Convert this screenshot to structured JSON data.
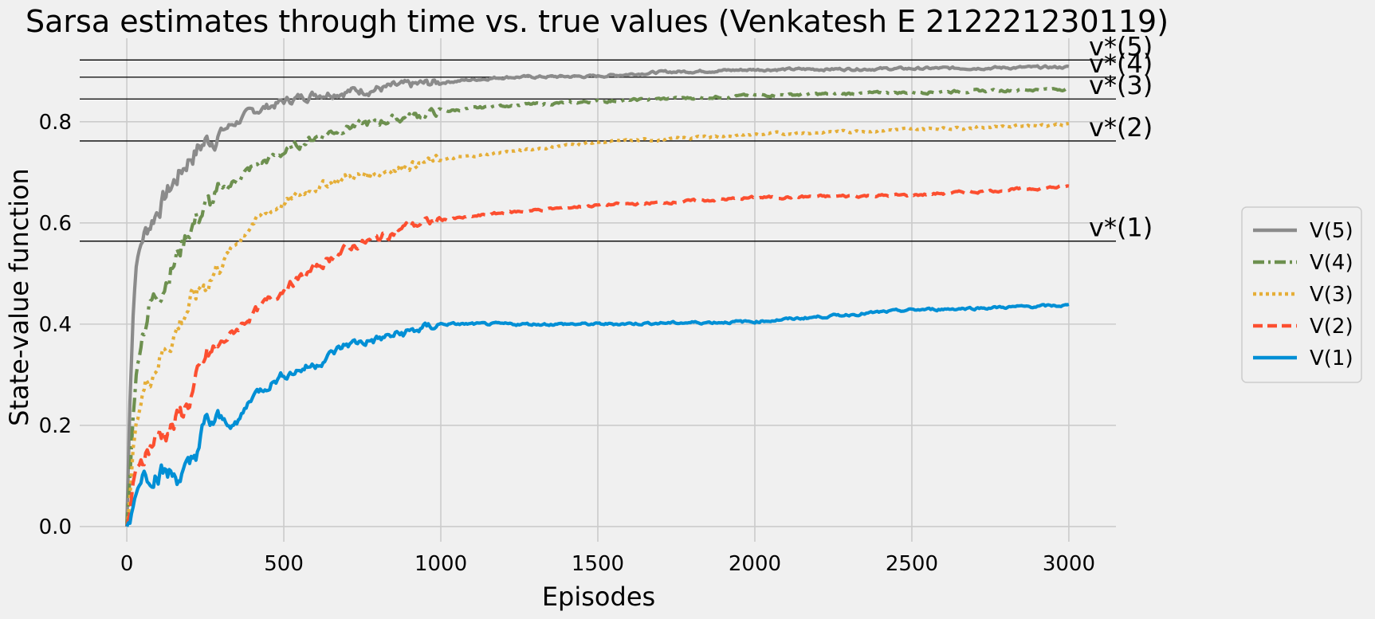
{
  "chart_data": {
    "type": "line",
    "title": "Sarsa estimates through time vs. true values (Venkatesh E 212221230119)",
    "xlabel": "Episodes",
    "ylabel": "State-value function",
    "xlim": [
      -150,
      3150
    ],
    "ylim": [
      -0.03,
      0.965
    ],
    "xticks": [
      0,
      500,
      1000,
      1500,
      2000,
      2500,
      3000
    ],
    "yticks": [
      0.0,
      0.2,
      0.4,
      0.6,
      0.8
    ],
    "xtick_labels": [
      "0",
      "500",
      "1000",
      "1500",
      "2000",
      "2500",
      "3000"
    ],
    "ytick_labels": [
      "0.0",
      "0.2",
      "0.4",
      "0.6",
      "0.8"
    ],
    "grid": true,
    "legend_position": "right",
    "true_values": [
      {
        "label": "v*(5)",
        "value": 0.922
      },
      {
        "label": "v*(4)",
        "value": 0.888
      },
      {
        "label": "v*(3)",
        "value": 0.845
      },
      {
        "label": "v*(2)",
        "value": 0.762
      },
      {
        "label": "v*(1)",
        "value": 0.564
      }
    ],
    "series": [
      {
        "name": "V(5)",
        "color": "#8b8b8b",
        "dash": "solid",
        "x": [
          0,
          10,
          20,
          30,
          50,
          75,
          100,
          150,
          200,
          250,
          300,
          400,
          500,
          600,
          700,
          800,
          900,
          1000,
          1200,
          1500,
          1700,
          2000,
          2500,
          3000
        ],
        "y": [
          0.0,
          0.25,
          0.42,
          0.52,
          0.57,
          0.6,
          0.63,
          0.68,
          0.73,
          0.76,
          0.78,
          0.82,
          0.84,
          0.855,
          0.86,
          0.865,
          0.872,
          0.878,
          0.888,
          0.89,
          0.898,
          0.903,
          0.905,
          0.908
        ]
      },
      {
        "name": "V(4)",
        "color": "#6d904f",
        "dash": "dashdot",
        "x": [
          0,
          10,
          20,
          30,
          50,
          75,
          100,
          150,
          200,
          250,
          300,
          400,
          500,
          600,
          700,
          800,
          900,
          1000,
          1200,
          1500,
          1700,
          2000,
          2500,
          3000
        ],
        "y": [
          0.0,
          0.1,
          0.22,
          0.3,
          0.38,
          0.44,
          0.46,
          0.52,
          0.59,
          0.63,
          0.66,
          0.71,
          0.74,
          0.77,
          0.79,
          0.8,
          0.81,
          0.82,
          0.832,
          0.84,
          0.845,
          0.852,
          0.858,
          0.865
        ]
      },
      {
        "name": "V(3)",
        "color": "#e5ae38",
        "dash": "dotted",
        "x": [
          0,
          10,
          20,
          30,
          50,
          75,
          100,
          150,
          200,
          250,
          300,
          400,
          500,
          600,
          700,
          800,
          900,
          1000,
          1200,
          1500,
          1700,
          2000,
          2500,
          3000
        ],
        "y": [
          0.0,
          0.06,
          0.15,
          0.2,
          0.26,
          0.3,
          0.33,
          0.38,
          0.44,
          0.48,
          0.52,
          0.6,
          0.64,
          0.67,
          0.69,
          0.7,
          0.715,
          0.725,
          0.74,
          0.76,
          0.765,
          0.775,
          0.785,
          0.795
        ]
      },
      {
        "name": "V(2)",
        "color": "#fc4f30",
        "dash": "dashed",
        "x": [
          0,
          10,
          20,
          30,
          50,
          75,
          100,
          150,
          200,
          250,
          300,
          400,
          500,
          600,
          700,
          800,
          900,
          1000,
          1200,
          1500,
          1700,
          2000,
          2500,
          3000
        ],
        "y": [
          0.0,
          0.03,
          0.08,
          0.11,
          0.14,
          0.16,
          0.18,
          0.2,
          0.25,
          0.33,
          0.36,
          0.42,
          0.47,
          0.51,
          0.55,
          0.57,
          0.595,
          0.605,
          0.62,
          0.635,
          0.64,
          0.65,
          0.655,
          0.672
        ]
      },
      {
        "name": "V(1)",
        "color": "#008fd5",
        "dash": "solid",
        "x": [
          0,
          10,
          20,
          30,
          50,
          75,
          100,
          150,
          200,
          250,
          300,
          350,
          400,
          500,
          600,
          700,
          800,
          900,
          1000,
          1200,
          1500,
          2000,
          2500,
          3000
        ],
        "y": [
          0.0,
          0.01,
          0.04,
          0.07,
          0.1,
          0.11,
          0.11,
          0.1,
          0.11,
          0.2,
          0.21,
          0.2,
          0.26,
          0.3,
          0.32,
          0.36,
          0.37,
          0.385,
          0.4,
          0.4,
          0.4,
          0.405,
          0.428,
          0.437
        ]
      }
    ]
  }
}
